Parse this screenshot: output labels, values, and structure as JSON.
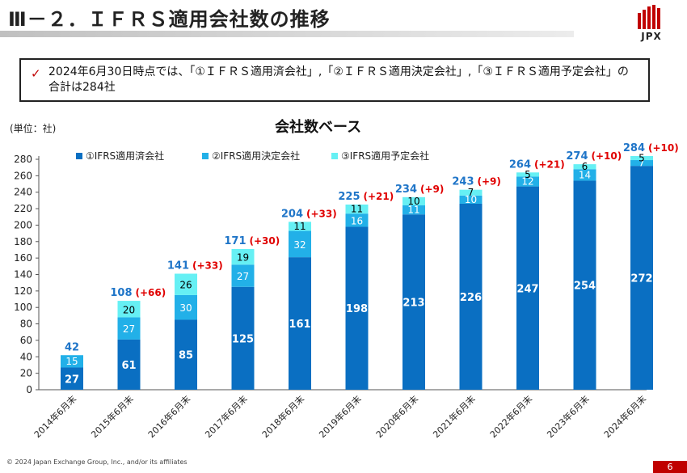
{
  "header": {
    "title": "Ⅲ－２．ＩＦＲＳ適用会社数の推移",
    "logo_text": "JPX"
  },
  "note": {
    "check": "✓",
    "text": "2024年6月30日時点では、「①ＩＦＲＳ適用済会社」,「②ＩＦＲＳ適用決定会社」,「③ＩＦＲＳ適用予定会社」の合計は284社"
  },
  "footer": {
    "copyright": "© 2024 Japan Exchange Group, Inc., and/or its affiliates",
    "page": "6"
  },
  "colors": {
    "series1": "#0a6fc2",
    "series2": "#22b0e8",
    "series3": "#66f0f4",
    "total": "#1f75c8",
    "delta": "#e00000",
    "brand_red": "#c00000"
  },
  "chart_data": {
    "type": "bar",
    "stacked": true,
    "title": "会社数ベース",
    "unit_label": "(単位：社)",
    "categories": [
      "2014年6月末",
      "2015年6月末",
      "2016年6月末",
      "2017年6月末",
      "2018年6月末",
      "2019年6月末",
      "2020年6月末",
      "2021年6月末",
      "2022年6月末",
      "2023年6月末",
      "2024年6月末"
    ],
    "series": [
      {
        "name": "①IFRS適用済会社",
        "values": [
          27,
          61,
          85,
          125,
          161,
          198,
          213,
          226,
          247,
          254,
          272
        ]
      },
      {
        "name": "②IFRS適用決定会社",
        "values": [
          15,
          27,
          30,
          27,
          32,
          16,
          11,
          10,
          12,
          14,
          7
        ]
      },
      {
        "name": "③IFRS適用予定会社",
        "values": [
          0,
          20,
          26,
          19,
          11,
          11,
          10,
          7,
          5,
          6,
          5
        ]
      }
    ],
    "totals": [
      42,
      108,
      141,
      171,
      204,
      225,
      234,
      243,
      264,
      274,
      284
    ],
    "deltas": [
      "",
      "(+66)",
      "(+33)",
      "(+30)",
      "(+33)",
      "(+21)",
      "(+9)",
      "(+9)",
      "(+21)",
      "(+10)",
      "(+10)"
    ],
    "yticks": [
      0,
      20,
      40,
      60,
      80,
      100,
      120,
      140,
      160,
      180,
      200,
      220,
      240,
      260,
      280
    ],
    "ylim": [
      0,
      290
    ],
    "legend_position": "top-left"
  }
}
